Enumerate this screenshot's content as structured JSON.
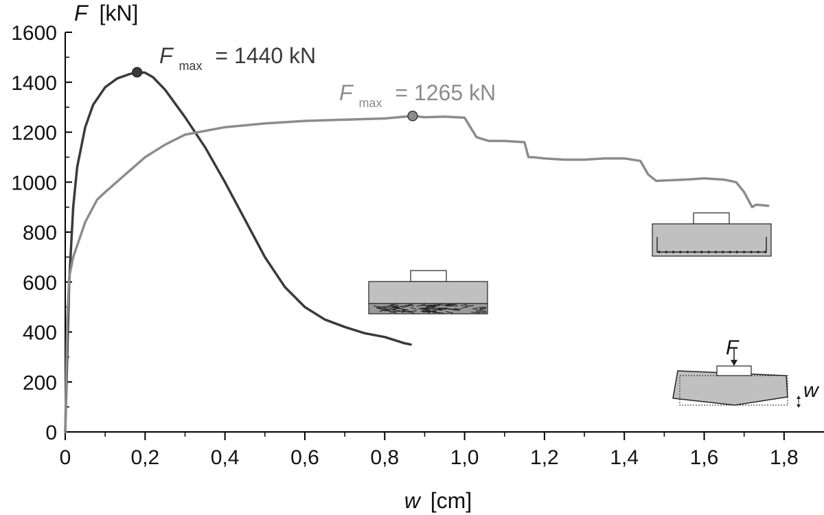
{
  "chart_data": {
    "type": "line",
    "xlabel": {
      "symbol": "w",
      "unit": "[cm]"
    },
    "ylabel": {
      "symbol": "F",
      "unit": "[kN]"
    },
    "xlim": [
      0,
      1.9
    ],
    "ylim": [
      0,
      1600
    ],
    "x_ticks": [
      0,
      0.2,
      0.4,
      0.6,
      0.8,
      1.0,
      1.2,
      1.4,
      1.6,
      1.8
    ],
    "x_tick_labels": [
      "0",
      "0,2",
      "0,4",
      "0,6",
      "0,8",
      "1,0",
      "1,2",
      "1,4",
      "1,6",
      "1,8"
    ],
    "y_ticks": [
      0,
      200,
      400,
      600,
      800,
      1000,
      1200,
      1400,
      1600
    ],
    "y_tick_labels": [
      "0",
      "200",
      "400",
      "600",
      "800",
      "1000",
      "1200",
      "1400",
      "1600"
    ],
    "grid": false,
    "colors": {
      "dark_series": "#3a3a3a",
      "light_series": "#8c8c8c",
      "axis": "#000000",
      "slab": "#c0c0c0"
    },
    "series": [
      {
        "color_key": "dark_series",
        "x": [
          0,
          0.005,
          0.01,
          0.02,
          0.03,
          0.05,
          0.07,
          0.1,
          0.13,
          0.16,
          0.18,
          0.2,
          0.22,
          0.25,
          0.3,
          0.35,
          0.4,
          0.45,
          0.5,
          0.55,
          0.6,
          0.65,
          0.7,
          0.75,
          0.8,
          0.85,
          0.865
        ],
        "y": [
          0,
          300,
          600,
          900,
          1060,
          1220,
          1310,
          1380,
          1415,
          1432,
          1440,
          1438,
          1420,
          1370,
          1260,
          1140,
          1000,
          850,
          700,
          580,
          500,
          450,
          420,
          395,
          380,
          355,
          350
        ],
        "max_point": {
          "x": 0.18,
          "y": 1440
        },
        "annotation": {
          "symbol": "F",
          "subscript": "max",
          "text": "= 1440 kN"
        }
      },
      {
        "color_key": "light_series",
        "x": [
          0,
          0.005,
          0.01,
          0.02,
          0.05,
          0.08,
          0.1,
          0.15,
          0.2,
          0.25,
          0.3,
          0.4,
          0.5,
          0.6,
          0.7,
          0.8,
          0.87,
          0.9,
          0.95,
          0.98,
          1.0,
          1.03,
          1.06,
          1.1,
          1.15,
          1.16,
          1.17,
          1.2,
          1.25,
          1.3,
          1.35,
          1.4,
          1.44,
          1.46,
          1.48,
          1.55,
          1.6,
          1.65,
          1.68,
          1.7,
          1.72,
          1.73,
          1.76
        ],
        "y": [
          0,
          450,
          620,
          700,
          840,
          930,
          960,
          1030,
          1100,
          1150,
          1190,
          1220,
          1235,
          1245,
          1250,
          1255,
          1265,
          1260,
          1262,
          1260,
          1258,
          1180,
          1165,
          1165,
          1160,
          1100,
          1100,
          1095,
          1090,
          1090,
          1095,
          1095,
          1085,
          1030,
          1005,
          1010,
          1015,
          1010,
          1000,
          960,
          900,
          910,
          905
        ],
        "max_point": {
          "x": 0.87,
          "y": 1265
        },
        "annotation": {
          "symbol": "F",
          "subscript": "max",
          "text": "= 1265 kN"
        }
      }
    ],
    "insets": [
      {
        "name": "fibre-reinforced-slab",
        "description_icon": "slab-with-fibres-icon"
      },
      {
        "name": "bar-reinforced-slab",
        "description_icon": "slab-with-rebar-icon"
      },
      {
        "name": "loading-scheme",
        "description_icon": "loaded-slab-icon",
        "force_label": "F",
        "deflection_label": "w"
      }
    ]
  }
}
